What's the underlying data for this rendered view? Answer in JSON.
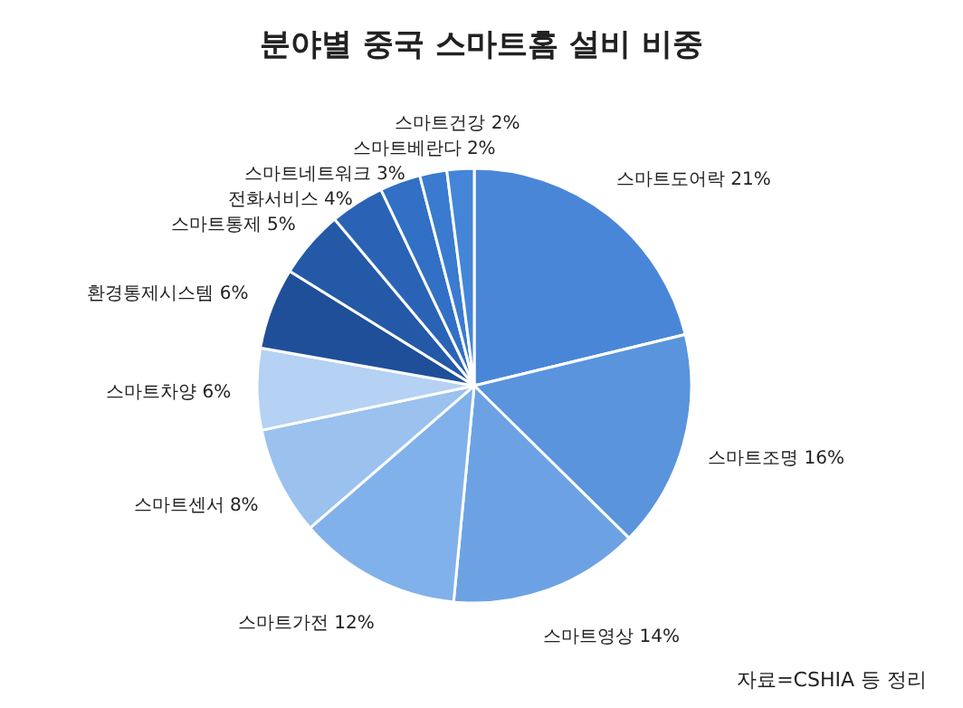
{
  "chart_data": {
    "type": "pie",
    "title": "분야별 중국 스마트홈 설비 비중",
    "categories": [
      "스마트도어락",
      "스마트조명",
      "스마트영상",
      "스마트가전",
      "스마트센서",
      "스마트차양",
      "환경통제시스템",
      "스마트통제",
      "전화서비스",
      "스마트네트워크",
      "스마트베란다",
      "스마트건강"
    ],
    "values": [
      21,
      16,
      14,
      12,
      8,
      6,
      6,
      5,
      4,
      3,
      2,
      2
    ],
    "value_labels": [
      "21%",
      "16%",
      "14%",
      "12%",
      "8%",
      "6%",
      "6%",
      "5%",
      "4%",
      "3%",
      "2%",
      "2%"
    ],
    "colors": [
      "#4a86d8",
      "#5a94dd",
      "#6ca2e4",
      "#81b1ea",
      "#9bc1ee",
      "#b5d1f3",
      "#1f4f99",
      "#2459a8",
      "#2a63b6",
      "#3170c4",
      "#3a7bd0",
      "#4585d8"
    ],
    "annotations": [
      "자료=CSHIA 등 정리"
    ]
  }
}
